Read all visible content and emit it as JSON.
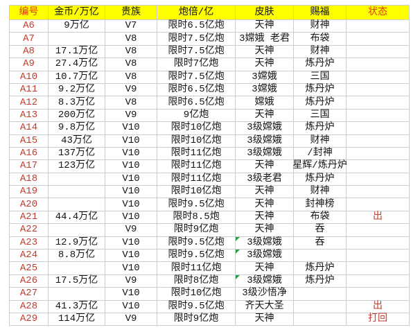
{
  "app": {
    "type": "spreadsheet-table"
  },
  "colors": {
    "header_bg": "#ffff00",
    "header_red": "#e8380d",
    "header_black": "#141414",
    "row_red": "#c23b2e",
    "cell_text": "#141414",
    "gridline": "#c9cdd4",
    "marker_green": "#2f9e44",
    "canvas_bg": "#ffffff"
  },
  "table": {
    "headers": [
      {
        "key": "id",
        "label": "编号",
        "red": true
      },
      {
        "key": "gold",
        "label": "金币/万亿",
        "red": false
      },
      {
        "key": "noble",
        "label": "贵族",
        "red": false
      },
      {
        "key": "cannon",
        "label": "炮倍/亿",
        "red": false
      },
      {
        "key": "skin",
        "label": "皮肤",
        "red": false
      },
      {
        "key": "blessing",
        "label": "赐福",
        "red": false
      },
      {
        "key": "status",
        "label": "状态",
        "red": true
      }
    ],
    "rows": [
      {
        "id": "A6",
        "gold": "9万亿",
        "noble": "V7",
        "cannon": "限时6.5亿炮",
        "skin": "天神",
        "skin_marker": false,
        "blessing": "财神",
        "status": ""
      },
      {
        "id": "A7",
        "gold": "",
        "noble": "V8",
        "cannon": "限时7.5亿炮",
        "skin": "3嫦娥 老君",
        "skin_marker": false,
        "blessing": "布袋",
        "status": ""
      },
      {
        "id": "A8",
        "gold": "17.1万亿",
        "noble": "V8",
        "cannon": "限时7.5亿炮",
        "skin": "天神",
        "skin_marker": false,
        "blessing": "财神",
        "status": ""
      },
      {
        "id": "A9",
        "gold": "27.4万亿",
        "noble": "V8",
        "cannon": "限时7亿炮",
        "skin": "天神",
        "skin_marker": false,
        "blessing": "炼丹炉",
        "status": ""
      },
      {
        "id": "A10",
        "gold": "10.7万亿",
        "noble": "V8",
        "cannon": "限时7.5亿炮",
        "skin": "3嫦娥",
        "skin_marker": false,
        "blessing": "三国",
        "status": ""
      },
      {
        "id": "A11",
        "gold": "9.2万亿",
        "noble": "V9",
        "cannon": "限时6.5亿炮",
        "skin": "3嫦娥",
        "skin_marker": false,
        "blessing": "炼丹炉",
        "status": ""
      },
      {
        "id": "A12",
        "gold": "8.3万亿",
        "noble": "V8",
        "cannon": "限时6.5亿炮",
        "skin": "嫦娥",
        "skin_marker": false,
        "blessing": "炼丹炉",
        "status": ""
      },
      {
        "id": "A13",
        "gold": "200万亿",
        "noble": "V9",
        "cannon": "9亿炮",
        "skin": "天神",
        "skin_marker": false,
        "blessing": "三国",
        "status": ""
      },
      {
        "id": "A14",
        "gold": "9.8万亿",
        "noble": "V10",
        "cannon": "限时10亿炮",
        "skin": "3级嫦娥",
        "skin_marker": false,
        "blessing": "炼丹炉",
        "status": ""
      },
      {
        "id": "A15",
        "gold": "43万亿",
        "noble": "V10",
        "cannon": "限时10亿炮",
        "skin": "3级嫦娥",
        "skin_marker": false,
        "blessing": "财神",
        "status": ""
      },
      {
        "id": "A16",
        "gold": "137万亿",
        "noble": "V10",
        "cannon": "限时11亿炮",
        "skin": "3级嫦娥",
        "skin_marker": false,
        "blessing": "/封神",
        "status": ""
      },
      {
        "id": "A17",
        "gold": "123万亿",
        "noble": "V10",
        "cannon": "限时11亿炮",
        "skin": "天神",
        "skin_marker": false,
        "blessing": "星辉/炼丹炉",
        "status": ""
      },
      {
        "id": "A18",
        "gold": "",
        "noble": "V10",
        "cannon": "限时11亿炮",
        "skin": "3级老君",
        "skin_marker": false,
        "blessing": "炼丹炉",
        "status": ""
      },
      {
        "id": "A19",
        "gold": "",
        "noble": "V10",
        "cannon": "限时10亿炮",
        "skin": "天神",
        "skin_marker": false,
        "blessing": "财神",
        "status": ""
      },
      {
        "id": "A20",
        "gold": "",
        "noble": "V10",
        "cannon": "限时9.5亿炮",
        "skin": "天神",
        "skin_marker": false,
        "blessing": "封神榜",
        "status": ""
      },
      {
        "id": "A21",
        "gold": "44.4万亿",
        "noble": "V10",
        "cannon": "限时8.5炮",
        "skin": "天神",
        "skin_marker": false,
        "blessing": "布袋",
        "status": "出"
      },
      {
        "id": "A22",
        "gold": "",
        "noble": "V9",
        "cannon": "限时9亿炮",
        "skin": "天神",
        "skin_marker": false,
        "blessing": "吞",
        "status": ""
      },
      {
        "id": "A23",
        "gold": "12.9万亿",
        "noble": "V10",
        "cannon": "限时9.5亿炮",
        "skin": "3级嫦娥",
        "skin_marker": true,
        "blessing": "吞",
        "status": ""
      },
      {
        "id": "A24",
        "gold": "8.8万亿",
        "noble": "V10",
        "cannon": "限时9.5亿炮",
        "skin": "3级嫦娥",
        "skin_marker": true,
        "blessing": "",
        "status": ""
      },
      {
        "id": "A25",
        "gold": "",
        "noble": "V10",
        "cannon": "限时11亿炮",
        "skin": "天神",
        "skin_marker": false,
        "blessing": "炼丹炉",
        "status": ""
      },
      {
        "id": "A26",
        "gold": "17.5万亿",
        "noble": "V9",
        "cannon": "限时8亿炮",
        "skin": "3级嫦娥",
        "skin_marker": true,
        "blessing": "炼丹炉",
        "status": ""
      },
      {
        "id": "A27",
        "gold": "",
        "noble": "V10",
        "cannon": "限时10亿炮",
        "skin": "3级沙悟净",
        "skin_marker": false,
        "blessing": "",
        "status": ""
      },
      {
        "id": "A28",
        "gold": "41.3万亿",
        "noble": "V10",
        "cannon": "限时9.5亿炮",
        "skin": "齐天大圣",
        "skin_marker": false,
        "blessing": "",
        "status": "出"
      },
      {
        "id": "A29",
        "gold": "114万亿",
        "noble": "V9",
        "cannon": "限时9亿炮",
        "skin": "天神",
        "skin_marker": false,
        "blessing": "",
        "status": "打回"
      }
    ]
  }
}
